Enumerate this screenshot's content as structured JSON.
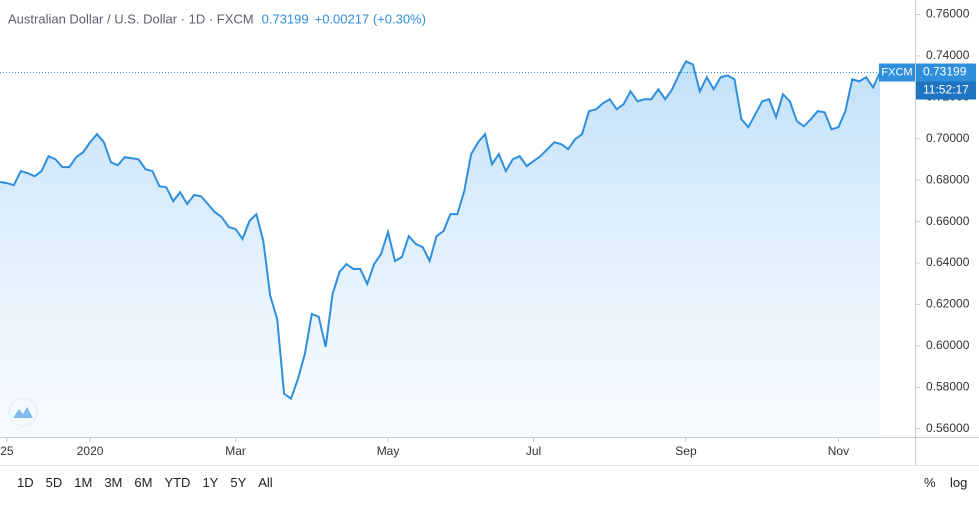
{
  "chart_data": {
    "type": "area",
    "title": "Australian Dollar / U.S. Dollar · 1D · FXCM",
    "change_label": "+0.00217 (+0.30%)",
    "countdown": "11:52:17",
    "log_scale": false,
    "grid": false,
    "categories": [
      null,
      "25",
      null,
      null,
      null,
      null,
      null,
      null,
      null,
      null,
      null,
      null,
      null,
      "2020",
      null,
      null,
      null,
      null,
      null,
      null,
      null,
      null,
      null,
      null,
      null,
      null,
      null,
      null,
      null,
      null,
      null,
      null,
      null,
      null,
      "Mar",
      null,
      null,
      null,
      null,
      null,
      null,
      null,
      null,
      null,
      null,
      null,
      null,
      null,
      null,
      null,
      null,
      null,
      null,
      null,
      null,
      null,
      "May",
      null,
      null,
      null,
      null,
      null,
      null,
      null,
      null,
      null,
      null,
      null,
      null,
      null,
      null,
      null,
      null,
      null,
      null,
      null,
      null,
      "Jul",
      null,
      null,
      null,
      null,
      null,
      null,
      null,
      null,
      null,
      null,
      null,
      null,
      null,
      null,
      null,
      null,
      null,
      null,
      null,
      null,
      null,
      "Sep",
      null,
      null,
      null,
      null,
      null,
      null,
      null,
      null,
      null,
      null,
      null,
      null,
      null,
      null,
      null,
      null,
      null,
      null,
      null,
      null,
      null,
      "Nov",
      null,
      null,
      null,
      null,
      null,
      null
    ],
    "series": [
      {
        "name": "FXCM",
        "color": "#2f8fdd",
        "values": [
          0.6791,
          0.6786,
          0.6776,
          0.6844,
          0.6834,
          0.6819,
          0.6844,
          0.6916,
          0.6901,
          0.6863,
          0.6863,
          0.6911,
          0.6935,
          0.6983,
          0.7022,
          0.6983,
          0.6887,
          0.6872,
          0.6911,
          0.6906,
          0.6901,
          0.6853,
          0.6844,
          0.6771,
          0.6766,
          0.6699,
          0.6742,
          0.6685,
          0.6728,
          0.6723,
          0.6685,
          0.6646,
          0.6622,
          0.6574,
          0.6564,
          0.6516,
          0.6603,
          0.6636,
          0.6506,
          0.6241,
          0.613,
          0.5769,
          0.5745,
          0.5841,
          0.5962,
          0.6154,
          0.614,
          0.5995,
          0.6251,
          0.6357,
          0.6395,
          0.6371,
          0.6371,
          0.6299,
          0.6395,
          0.6444,
          0.655,
          0.641,
          0.6429,
          0.653,
          0.6492,
          0.6477,
          0.641,
          0.653,
          0.6554,
          0.6636,
          0.6636,
          0.6747,
          0.6926,
          0.6983,
          0.7022,
          0.6877,
          0.6926,
          0.6844,
          0.6901,
          0.6916,
          0.6868,
          0.6892,
          0.6916,
          0.695,
          0.6983,
          0.6974,
          0.695,
          0.6998,
          0.7022,
          0.7133,
          0.7142,
          0.7171,
          0.7191,
          0.7142,
          0.7167,
          0.7229,
          0.7181,
          0.7191,
          0.7191,
          0.7239,
          0.7191,
          0.7239,
          0.7311,
          0.7374,
          0.7359,
          0.7229,
          0.7297,
          0.7239,
          0.7297,
          0.7306,
          0.7287,
          0.7094,
          0.7056,
          0.7118,
          0.7181,
          0.7191,
          0.7104,
          0.7215,
          0.7181,
          0.7085,
          0.706,
          0.7094,
          0.7133,
          0.7128,
          0.7046,
          0.7056,
          0.7133,
          0.7287,
          0.7277,
          0.7297,
          0.7248,
          0.73199
        ]
      }
    ],
    "ylim": [
      0.556,
      0.767
    ],
    "yticks": [
      {
        "value": 0.56,
        "label": "0.56000"
      },
      {
        "value": 0.58,
        "label": "0.58000"
      },
      {
        "value": 0.6,
        "label": "0.60000"
      },
      {
        "value": 0.62,
        "label": "0.62000"
      },
      {
        "value": 0.64,
        "label": "0.64000"
      },
      {
        "value": 0.66,
        "label": "0.66000"
      },
      {
        "value": 0.68,
        "label": "0.68000"
      },
      {
        "value": 0.7,
        "label": "0.70000"
      },
      {
        "value": 0.72,
        "label": "0.72000"
      },
      {
        "value": 0.74,
        "label": "0.74000"
      },
      {
        "value": 0.76,
        "label": "0.76000"
      }
    ]
  },
  "toolbar": {
    "ranges": [
      "1D",
      "5D",
      "1M",
      "3M",
      "6M",
      "YTD",
      "1Y",
      "5Y",
      "All"
    ],
    "options": [
      "%",
      "log"
    ]
  }
}
